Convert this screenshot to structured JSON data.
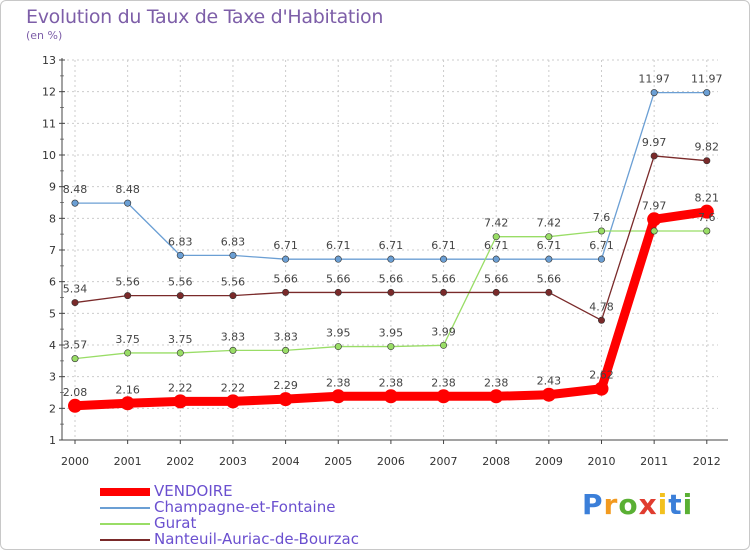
{
  "chart_data": {
    "type": "line",
    "title": "Evolution du Taux de Taxe d'Habitation",
    "subtitle": "(en %)",
    "x": [
      "2000",
      "2001",
      "2002",
      "2003",
      "2004",
      "2005",
      "2006",
      "2007",
      "2008",
      "2009",
      "2010",
      "2011",
      "2012"
    ],
    "y_ticks": [
      "1",
      "2",
      "3",
      "4",
      "5",
      "6",
      "7",
      "8",
      "9",
      "10",
      "11",
      "12",
      "13"
    ],
    "ylim": [
      1,
      13
    ],
    "grid": true,
    "legend_position": "bottom-left",
    "series": [
      {
        "name": "VENDOIRE",
        "color": "#ff0000",
        "values": [
          2.08,
          2.16,
          2.22,
          2.22,
          2.29,
          2.38,
          2.38,
          2.38,
          2.38,
          2.43,
          2.62,
          7.97,
          8.21
        ],
        "labels": [
          "2.08",
          "2.16",
          "2.22",
          "2.22",
          "2.29",
          "2.38",
          "2.38",
          "2.38",
          "2.38",
          "2.43",
          "2.62",
          "7.97",
          "8.21"
        ]
      },
      {
        "name": "Champagne-et-Fontaine",
        "color": "#6b9fd4",
        "values": [
          8.48,
          8.48,
          6.83,
          6.83,
          6.71,
          6.71,
          6.71,
          6.71,
          6.71,
          6.71,
          6.71,
          11.97,
          11.97
        ],
        "labels": [
          "8.48",
          "8.48",
          "6.83",
          "6.83",
          "6.71",
          "6.71",
          "6.71",
          "6.71",
          "6.71",
          "6.71",
          "6.71",
          "11.97",
          "11.97"
        ]
      },
      {
        "name": "Gurat",
        "color": "#99dd66",
        "values": [
          3.57,
          3.75,
          3.75,
          3.83,
          3.83,
          3.95,
          3.95,
          3.99,
          7.42,
          7.42,
          7.6,
          7.6,
          7.6
        ],
        "labels": [
          "3.57",
          "3.75",
          "3.75",
          "3.83",
          "3.83",
          "3.95",
          "3.95",
          "3.99",
          "7.42",
          "7.42",
          "7.6",
          "",
          "7.6"
        ]
      },
      {
        "name": "Nanteuil-Auriac-de-Bourzac",
        "color": "#7a2a2a",
        "values": [
          5.34,
          5.56,
          5.56,
          5.56,
          5.66,
          5.66,
          5.66,
          5.66,
          5.66,
          5.66,
          4.78,
          9.97,
          9.82
        ],
        "labels": [
          "5.34",
          "5.56",
          "5.56",
          "5.56",
          "5.66",
          "5.66",
          "5.66",
          "5.66",
          "5.66",
          "5.66",
          "4.78",
          "9.97",
          "9.82"
        ]
      }
    ]
  },
  "brand": {
    "letters": [
      "P",
      "r",
      "o",
      "x",
      "i",
      "t",
      "i"
    ],
    "colors": [
      "#3b7fd9",
      "#f29a1f",
      "#5ab034",
      "#e03c2f",
      "#f2c11f",
      "#3b7fd9",
      "#5ab034"
    ]
  }
}
